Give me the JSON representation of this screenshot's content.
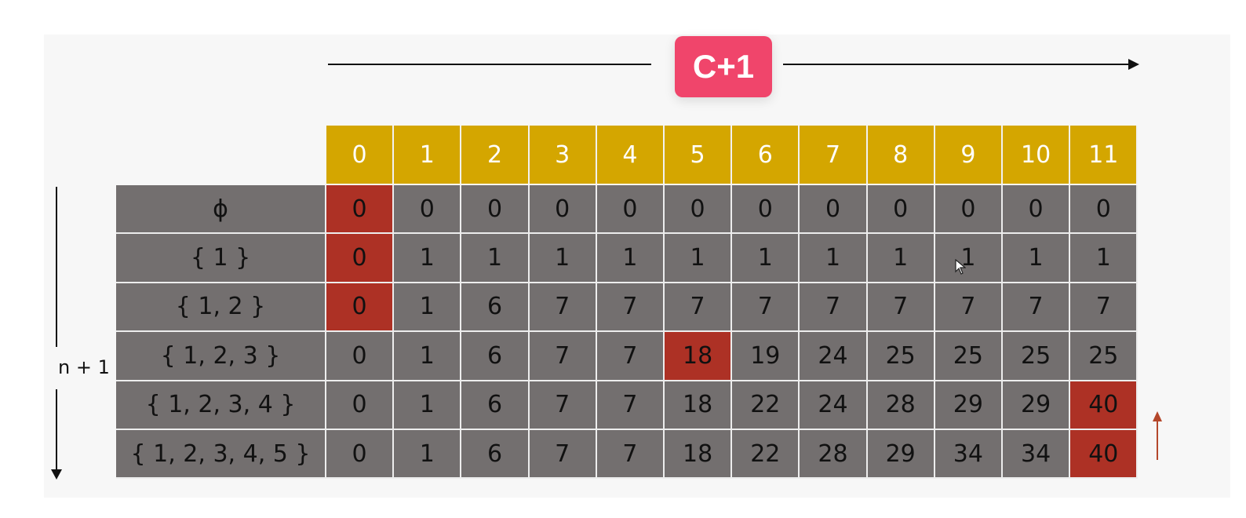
{
  "badge": {
    "label": "C+1"
  },
  "vertical_label": "n + 1",
  "columns": [
    "0",
    "1",
    "2",
    "3",
    "4",
    "5",
    "6",
    "7",
    "8",
    "9",
    "10",
    "11"
  ],
  "rows": [
    {
      "label": "ϕ",
      "values": [
        "0",
        "0",
        "0",
        "0",
        "0",
        "0",
        "0",
        "0",
        "0",
        "0",
        "0",
        "0"
      ],
      "highlight": [
        0
      ]
    },
    {
      "label": "{ 1 }",
      "values": [
        "0",
        "1",
        "1",
        "1",
        "1",
        "1",
        "1",
        "1",
        "1",
        "1",
        "1",
        "1"
      ],
      "highlight": [
        0
      ]
    },
    {
      "label": "{ 1, 2 }",
      "values": [
        "0",
        "1",
        "6",
        "7",
        "7",
        "7",
        "7",
        "7",
        "7",
        "7",
        "7",
        "7"
      ],
      "highlight": [
        0
      ]
    },
    {
      "label": "{ 1, 2, 3 }",
      "values": [
        "0",
        "1",
        "6",
        "7",
        "7",
        "18",
        "19",
        "24",
        "25",
        "25",
        "25",
        "25"
      ],
      "highlight": [
        5
      ]
    },
    {
      "label": "{ 1, 2, 3, 4 }",
      "values": [
        "0",
        "1",
        "6",
        "7",
        "7",
        "18",
        "22",
        "24",
        "28",
        "29",
        "29",
        "40"
      ],
      "highlight": [
        11
      ]
    },
    {
      "label": "{ 1, 2, 3, 4, 5 }",
      "values": [
        "0",
        "1",
        "6",
        "7",
        "7",
        "18",
        "22",
        "28",
        "29",
        "34",
        "34",
        "40"
      ],
      "highlight": [
        11
      ]
    }
  ],
  "colors": {
    "header": "#d4a600",
    "cell": "#736f6f",
    "highlight": "#ad3125",
    "badge": "#f0456b"
  },
  "icons": {
    "cursor": "mouse-pointer-icon"
  }
}
